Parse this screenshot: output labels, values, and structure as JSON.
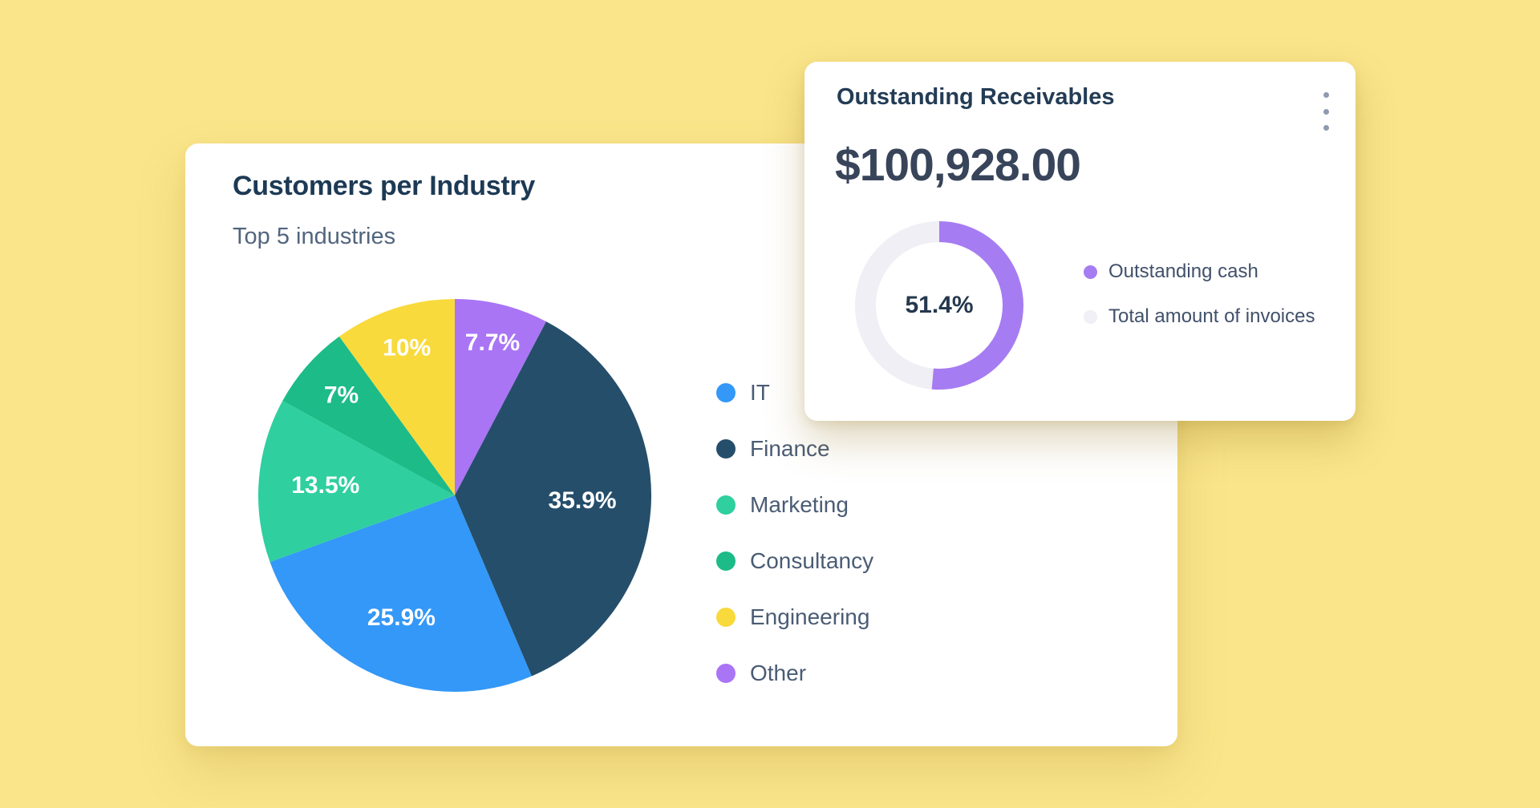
{
  "page": {
    "background_color": "#FAE58A",
    "card_color": "#FFFFFF"
  },
  "customers_card": {
    "title": "Customers per Industry",
    "subtitle": "Top 5 industries"
  },
  "receivables_card": {
    "title": "Outstanding Receivables",
    "menu_icon": "kebab-menu-icon",
    "amount": "$100,928.00",
    "donut_center_label": "51.4%"
  },
  "chart_data": [
    {
      "type": "pie",
      "title": "Customers per Industry",
      "subtitle": "Top 5 industries",
      "start_angle_deg": 0,
      "direction": "clockwise",
      "slices": [
        {
          "label": "Other",
          "value": 7.7,
          "display": "7.7%",
          "color": "#A975F5"
        },
        {
          "label": "Finance",
          "value": 35.9,
          "display": "35.9%",
          "color": "#254E6B"
        },
        {
          "label": "IT",
          "value": 25.9,
          "display": "25.9%",
          "color": "#3398F7"
        },
        {
          "label": "Marketing",
          "value": 13.5,
          "display": "13.5%",
          "color": "#2FCF9F"
        },
        {
          "label": "Consultancy",
          "value": 7,
          "display": "7%",
          "color": "#1CBB87"
        },
        {
          "label": "Engineering",
          "value": 10,
          "display": "10%",
          "color": "#F8DA3C"
        }
      ],
      "legend_order": [
        "IT",
        "Finance",
        "Marketing",
        "Consultancy",
        "Engineering",
        "Other"
      ],
      "legend_position": "right",
      "label_color": "#FFFFFF"
    },
    {
      "type": "donut",
      "title": "Outstanding Receivables",
      "amount": "$100,928.00",
      "center_label": "51.4%",
      "percent": 51.4,
      "series": [
        {
          "name": "Outstanding cash",
          "value": 51.4,
          "color": "#A67CF2"
        },
        {
          "name": "Total amount of invoices",
          "value": null,
          "color": "#EFEFF5"
        }
      ],
      "legend_position": "right"
    }
  ]
}
